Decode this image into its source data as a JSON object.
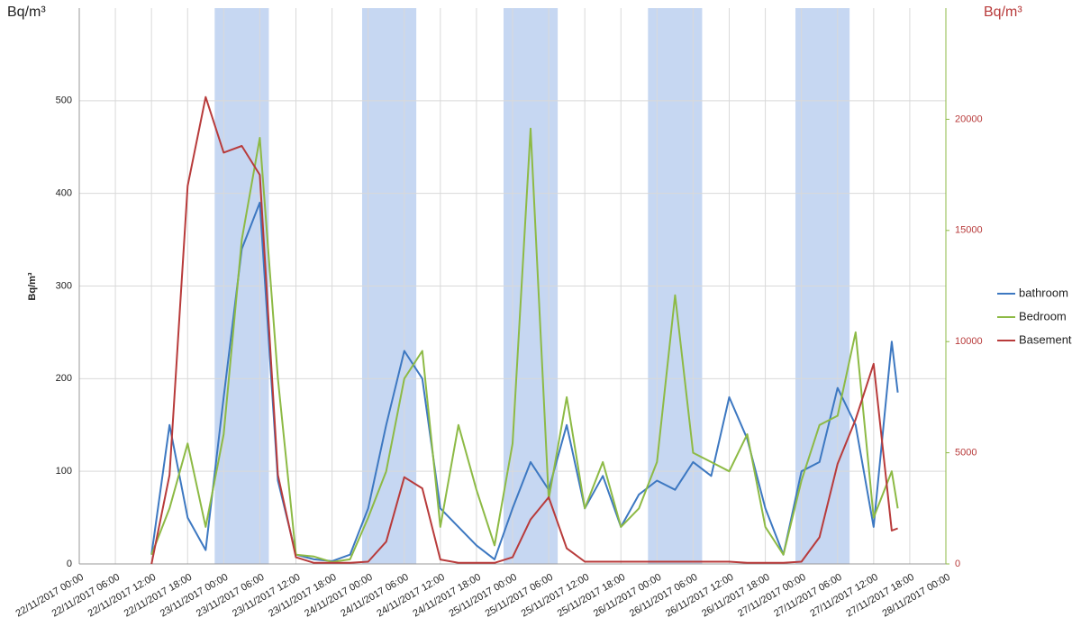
{
  "chart_data": {
    "type": "line",
    "y_title": "Bq/m³",
    "y_title_left_top": "Bq/m³",
    "y2_title": "Bq/m³",
    "xlim": [
      "22/11/2017 00:00",
      "28/11/2017 00:00"
    ],
    "xticks": [
      "22/11/2017 00:00",
      "22/11/2017 06:00",
      "22/11/2017 12:00",
      "22/11/2017 18:00",
      "23/11/2017 00:00",
      "23/11/2017 06:00",
      "23/11/2017 12:00",
      "23/11/2017 18:00",
      "24/11/2017 00:00",
      "24/11/2017 06:00",
      "24/11/2017 12:00",
      "24/11/2017 18:00",
      "25/11/2017 00:00",
      "25/11/2017 06:00",
      "25/11/2017 12:00",
      "25/11/2017 18:00",
      "26/11/2017 00:00",
      "26/11/2017 06:00",
      "26/11/2017 12:00",
      "26/11/2017 18:00",
      "27/11/2017 00:00",
      "27/11/2017 06:00",
      "27/11/2017 12:00",
      "27/11/2017 18:00",
      "28/11/2017 00:00"
    ],
    "ylim": [
      0,
      600
    ],
    "yticks": [
      0,
      100,
      200,
      300,
      400,
      500
    ],
    "y2lim": [
      0,
      25000
    ],
    "y2ticks": [
      0,
      5000,
      10000,
      15000,
      20000
    ],
    "grid": true,
    "legend": "right",
    "bands": [
      [
        "22/11/2017 22:30",
        "23/11/2017 07:30"
      ],
      [
        "23/11/2017 23:00",
        "24/11/2017 08:00"
      ],
      [
        "24/11/2017 22:30",
        "25/11/2017 07:30"
      ],
      [
        "25/11/2017 22:30",
        "26/11/2017 07:30"
      ],
      [
        "26/11/2017 23:00",
        "27/11/2017 08:00"
      ]
    ],
    "band_color": "#c6d7f2",
    "x": [
      "22/11/2017 12:00",
      "22/11/2017 15:00",
      "22/11/2017 18:00",
      "22/11/2017 21:00",
      "23/11/2017 00:00",
      "23/11/2017 03:00",
      "23/11/2017 06:00",
      "23/11/2017 09:00",
      "23/11/2017 12:00",
      "23/11/2017 15:00",
      "23/11/2017 18:00",
      "23/11/2017 21:00",
      "24/11/2017 00:00",
      "24/11/2017 03:00",
      "24/11/2017 06:00",
      "24/11/2017 09:00",
      "24/11/2017 12:00",
      "24/11/2017 15:00",
      "24/11/2017 18:00",
      "24/11/2017 21:00",
      "25/11/2017 00:00",
      "25/11/2017 03:00",
      "25/11/2017 06:00",
      "25/11/2017 09:00",
      "25/11/2017 12:00",
      "25/11/2017 15:00",
      "25/11/2017 18:00",
      "25/11/2017 21:00",
      "26/11/2017 00:00",
      "26/11/2017 03:00",
      "26/11/2017 06:00",
      "26/11/2017 09:00",
      "26/11/2017 12:00",
      "26/11/2017 15:00",
      "26/11/2017 18:00",
      "26/11/2017 21:00",
      "27/11/2017 00:00",
      "27/11/2017 03:00",
      "27/11/2017 06:00",
      "27/11/2017 09:00",
      "27/11/2017 12:00",
      "27/11/2017 15:00",
      "27/11/2017 16:00"
    ],
    "series": [
      {
        "name": "bathroom",
        "color": "#3d78c1",
        "axis": "y",
        "values": [
          10,
          150,
          50,
          15,
          180,
          340,
          390,
          90,
          10,
          5,
          3,
          10,
          60,
          150,
          230,
          200,
          60,
          40,
          20,
          5,
          60,
          110,
          80,
          150,
          60,
          95,
          40,
          75,
          90,
          80,
          110,
          95,
          180,
          135,
          60,
          10,
          100,
          110,
          190,
          150,
          40,
          240,
          185
        ]
      },
      {
        "name": "Bedroom",
        "color": "#8dba45",
        "axis": "y",
        "values": [
          10,
          60,
          130,
          40,
          140,
          350,
          460,
          200,
          10,
          8,
          2,
          5,
          50,
          100,
          200,
          230,
          40,
          150,
          80,
          20,
          130,
          470,
          70,
          180,
          60,
          110,
          40,
          60,
          110,
          290,
          120,
          110,
          100,
          140,
          40,
          10,
          90,
          150,
          160,
          250,
          50,
          100,
          60
        ]
      },
      {
        "name": "Basement",
        "color": "#b83b3b",
        "axis": "y2",
        "values": [
          0,
          4000,
          17000,
          21000,
          18500,
          18800,
          17500,
          4000,
          300,
          50,
          50,
          50,
          100,
          1000,
          3900,
          3400,
          200,
          50,
          50,
          50,
          300,
          2000,
          3000,
          700,
          100,
          100,
          100,
          100,
          100,
          100,
          100,
          100,
          100,
          50,
          50,
          50,
          100,
          1200,
          4500,
          6500,
          9000,
          1500,
          1600
        ]
      }
    ]
  }
}
